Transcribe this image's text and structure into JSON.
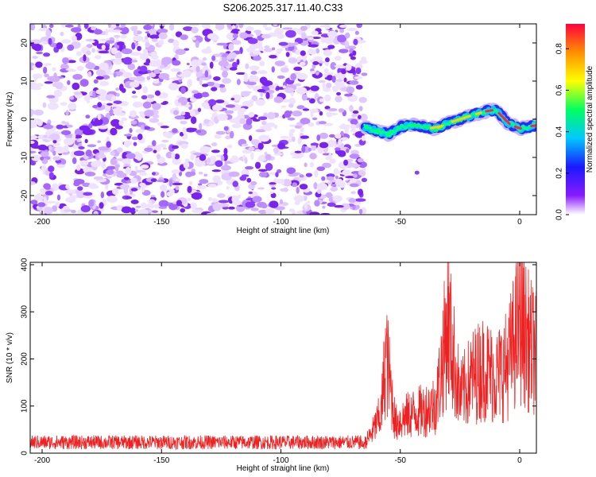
{
  "title": "S206.2025.317.11.40.C33",
  "chart_data": [
    {
      "type": "heatmap",
      "name": "spectrogram",
      "xlabel": "Height of straight line (km)",
      "ylabel": "Frequency (Hz)",
      "xlim": [
        -205,
        7
      ],
      "ylim": [
        -25,
        25
      ],
      "xticks": [
        -200,
        -150,
        -100,
        -50,
        0
      ],
      "yticks": [
        -20,
        -10,
        0,
        10,
        20
      ],
      "noise_region_km": [
        -205,
        -65
      ],
      "signal_track": {
        "x": [
          -65,
          -60,
          -55,
          -50,
          -45,
          -40,
          -35,
          -30,
          -25,
          -20,
          -15,
          -10,
          -5,
          0,
          7
        ],
        "y": [
          -2,
          -3,
          -4,
          -2,
          -1.5,
          -2,
          -2.5,
          -1,
          0,
          1,
          2,
          2.5,
          -1,
          -2.5,
          -1.5
        ]
      },
      "colorbar": {
        "label": "Normalized spectral amplitude",
        "range": [
          0,
          0.92
        ],
        "ticks": [
          "0.0",
          "0.2",
          "0.4",
          "0.6",
          "0.8"
        ],
        "colors": [
          "#ffffff",
          "#8a1aff",
          "#1a1aff",
          "#00c8ff",
          "#00ff60",
          "#ffff00",
          "#ff9000",
          "#ff0040"
        ]
      }
    },
    {
      "type": "line",
      "name": "snr",
      "xlabel": "Height of straight line (km)",
      "ylabel": "SNR (10 * v/v)",
      "xlim": [
        -205,
        7
      ],
      "ylim": [
        0,
        405
      ],
      "xticks": [
        -200,
        -150,
        -100,
        -50,
        0
      ],
      "yticks": [
        0,
        100,
        200,
        300,
        400
      ],
      "color": "#ee2222",
      "series": [
        {
          "name": "SNR",
          "x": [
            -205,
            -66,
            -62,
            -58,
            -56,
            -52,
            -48,
            -45,
            -40,
            -35,
            -30,
            -25,
            -20,
            -15,
            -10,
            -5,
            0,
            5,
            7
          ],
          "y": [
            20,
            20,
            60,
            120,
            300,
            90,
            110,
            120,
            130,
            150,
            400,
            170,
            230,
            260,
            230,
            270,
            400,
            320,
            300
          ]
        }
      ]
    }
  ]
}
